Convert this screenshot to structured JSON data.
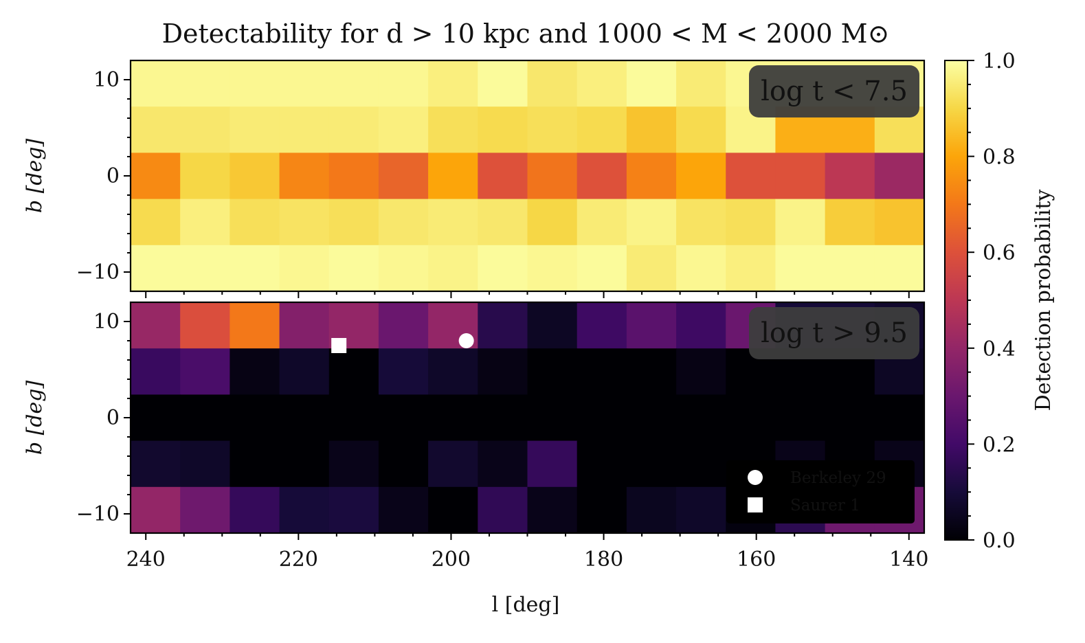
{
  "title": "Detectability for d > 10 kpc and 1000 < M < 2000 M⊙",
  "colorbar": {
    "label": "Detection probability",
    "colormap": "inferno",
    "range": [
      0.0,
      1.0
    ],
    "ticks": [
      "0.0",
      "0.2",
      "0.4",
      "0.6",
      "0.8",
      "1.0"
    ],
    "tick_values": [
      0.0,
      0.2,
      0.4,
      0.6,
      0.8,
      1.0
    ]
  },
  "chart_data": [
    {
      "type": "heatmap",
      "panel_label": "log t < 7.5",
      "xlabel": "",
      "ylabel": "b [deg]",
      "xlim": [
        242,
        138
      ],
      "ylim": [
        -12,
        12
      ],
      "x_ticks": [
        240,
        220,
        200,
        180,
        160,
        140
      ],
      "x_tick_labels": [],
      "y_ticks": [
        -10,
        0,
        10
      ],
      "y_tick_labels": [
        "−10",
        "0",
        "10"
      ],
      "l_bin_edges": [
        242.0,
        235.5,
        229.0,
        222.5,
        216.0,
        209.5,
        203.0,
        196.5,
        190.0,
        183.5,
        177.0,
        170.5,
        164.0,
        157.5,
        151.0,
        144.5,
        138.0
      ],
      "b_bin_edges": [
        12.0,
        7.2,
        2.4,
        -2.4,
        -7.2,
        -12.0
      ],
      "values": [
        [
          0.98,
          0.98,
          0.98,
          0.98,
          0.98,
          0.98,
          0.96,
          0.99,
          0.94,
          0.96,
          0.99,
          0.95,
          0.98,
          0.98,
          0.98,
          0.98
        ],
        [
          0.94,
          0.94,
          0.95,
          0.95,
          0.95,
          0.96,
          0.92,
          0.91,
          0.92,
          0.91,
          0.86,
          0.91,
          0.97,
          0.82,
          0.82,
          0.92
        ],
        [
          0.74,
          0.9,
          0.87,
          0.73,
          0.7,
          0.65,
          0.8,
          0.6,
          0.69,
          0.6,
          0.72,
          0.8,
          0.6,
          0.6,
          0.5,
          0.42
        ],
        [
          0.91,
          0.96,
          0.92,
          0.93,
          0.92,
          0.94,
          0.95,
          0.94,
          0.9,
          0.95,
          0.97,
          0.93,
          0.92,
          0.97,
          0.88,
          0.86
        ],
        [
          0.99,
          0.99,
          0.99,
          0.98,
          0.99,
          0.98,
          0.97,
          0.99,
          0.98,
          0.99,
          0.95,
          0.98,
          0.96,
          0.99,
          0.99,
          0.99
        ]
      ]
    },
    {
      "type": "heatmap",
      "panel_label": "log t > 9.5",
      "xlabel": "l [deg]",
      "ylabel": "b [deg]",
      "xlim": [
        242,
        138
      ],
      "ylim": [
        -12,
        12
      ],
      "x_ticks": [
        240,
        220,
        200,
        180,
        160,
        140
      ],
      "x_tick_labels": [
        "240",
        "220",
        "200",
        "180",
        "160",
        "140"
      ],
      "y_ticks": [
        -10,
        0,
        10
      ],
      "y_tick_labels": [
        "−10",
        "0",
        "10"
      ],
      "l_bin_edges": [
        242.0,
        235.5,
        229.0,
        222.5,
        216.0,
        209.5,
        203.0,
        196.5,
        190.0,
        183.5,
        177.0,
        170.5,
        164.0,
        157.5,
        151.0,
        144.5,
        138.0
      ],
      "b_bin_edges": [
        12.0,
        7.2,
        2.4,
        -2.4,
        -7.2,
        -12.0
      ],
      "values": [
        [
          0.41,
          0.59,
          0.7,
          0.36,
          0.4,
          0.3,
          0.4,
          0.14,
          0.06,
          0.19,
          0.26,
          0.19,
          0.3,
          0.1,
          0.1,
          0.08
        ],
        [
          0.18,
          0.22,
          0.03,
          0.07,
          0.0,
          0.1,
          0.07,
          0.03,
          0.0,
          0.0,
          0.0,
          0.03,
          0.0,
          0.0,
          0.0,
          0.06
        ],
        [
          0.0,
          0.0,
          0.0,
          0.0,
          0.0,
          0.0,
          0.0,
          0.0,
          0.0,
          0.0,
          0.0,
          0.0,
          0.0,
          0.0,
          0.0,
          0.0
        ],
        [
          0.08,
          0.07,
          0.0,
          0.0,
          0.04,
          0.0,
          0.08,
          0.04,
          0.17,
          0.0,
          0.0,
          0.0,
          0.0,
          0.04,
          0.0,
          0.04
        ],
        [
          0.4,
          0.31,
          0.17,
          0.1,
          0.11,
          0.04,
          0.0,
          0.16,
          0.04,
          0.0,
          0.05,
          0.07,
          0.02,
          0.15,
          0.31,
          0.31
        ]
      ],
      "markers": [
        {
          "name": "Berkeley 29",
          "symbol": "circle",
          "l": 198.0,
          "b": 8.0,
          "color": "#ffffff"
        },
        {
          "name": "Saurer 1",
          "symbol": "square",
          "l": 214.7,
          "b": 7.5,
          "color": "#ffffff"
        }
      ],
      "legend": {
        "placement": "lower-right",
        "entries": [
          {
            "symbol": "circle",
            "label": "Berkeley 29"
          },
          {
            "symbol": "square",
            "label": "Saurer 1"
          }
        ]
      }
    }
  ]
}
